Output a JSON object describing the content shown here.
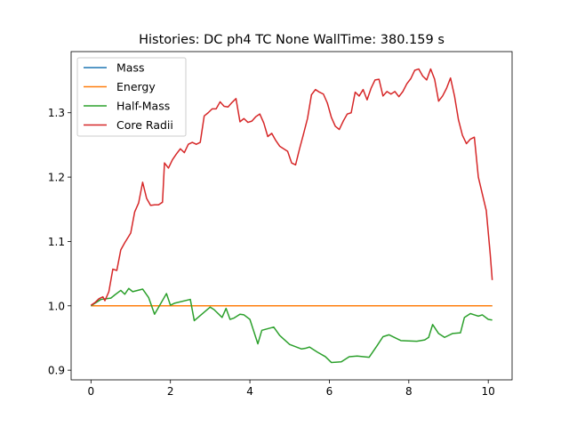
{
  "chart_data": {
    "type": "line",
    "title": "Histories: DC ph4 TC None WallTime: 380.159 s",
    "xlabel": "",
    "ylabel": "",
    "xlim": [
      -0.5,
      10.6
    ],
    "ylim": [
      0.885,
      1.395
    ],
    "xticks": [
      0,
      2,
      4,
      6,
      8,
      10
    ],
    "yticks": [
      0.9,
      1.0,
      1.1,
      1.2,
      1.3
    ],
    "ytick_labels": [
      "0.9",
      "1.0",
      "1.1",
      "1.2",
      "1.3"
    ],
    "grid": false,
    "legend_position": "upper-left",
    "series": [
      {
        "name": "Mass",
        "color": "#1f77b4",
        "x": [
          0,
          10.1
        ],
        "y": [
          1.0,
          1.0
        ]
      },
      {
        "name": "Energy",
        "color": "#ff7f0e",
        "x": [
          0,
          10.1
        ],
        "y": [
          1.0,
          1.0
        ]
      },
      {
        "name": "Half-Mass",
        "color": "#2ca02c",
        "x": [
          0,
          0.25,
          0.5,
          0.6,
          0.75,
          0.85,
          0.95,
          1.05,
          1.3,
          1.45,
          1.6,
          1.9,
          2.0,
          2.1,
          2.5,
          2.6,
          3.0,
          3.1,
          3.3,
          3.4,
          3.5,
          3.6,
          3.75,
          3.85,
          4.0,
          4.2,
          4.3,
          4.6,
          4.75,
          5.0,
          5.3,
          5.4,
          5.5,
          5.7,
          5.9,
          6.05,
          6.3,
          6.5,
          6.7,
          7.0,
          7.2,
          7.35,
          7.5,
          7.8,
          8.2,
          8.4,
          8.5,
          8.6,
          8.75,
          8.9,
          9.1,
          9.3,
          9.4,
          9.55,
          9.65,
          9.75,
          9.85,
          10.0,
          10.1
        ],
        "y": [
          1.0,
          1.01,
          1.012,
          1.017,
          1.024,
          1.018,
          1.027,
          1.022,
          1.026,
          1.013,
          0.987,
          1.019,
          1.001,
          1.004,
          1.01,
          0.977,
          0.998,
          0.994,
          0.982,
          0.996,
          0.979,
          0.981,
          0.987,
          0.986,
          0.979,
          0.941,
          0.962,
          0.967,
          0.954,
          0.94,
          0.933,
          0.934,
          0.936,
          0.928,
          0.921,
          0.912,
          0.913,
          0.921,
          0.922,
          0.92,
          0.938,
          0.952,
          0.955,
          0.946,
          0.945,
          0.947,
          0.951,
          0.971,
          0.957,
          0.951,
          0.957,
          0.958,
          0.982,
          0.988,
          0.986,
          0.984,
          0.986,
          0.979,
          0.978
        ]
      },
      {
        "name": "Core Radii",
        "color": "#d62728",
        "x": [
          0,
          0.1,
          0.2,
          0.3,
          0.35,
          0.45,
          0.55,
          0.65,
          0.75,
          0.85,
          1.0,
          1.1,
          1.2,
          1.3,
          1.4,
          1.5,
          1.6,
          1.7,
          1.8,
          1.85,
          1.95,
          2.05,
          2.15,
          2.25,
          2.35,
          2.45,
          2.55,
          2.65,
          2.75,
          2.85,
          2.95,
          3.05,
          3.15,
          3.25,
          3.35,
          3.45,
          3.55,
          3.65,
          3.75,
          3.85,
          3.95,
          4.05,
          4.15,
          4.25,
          4.35,
          4.45,
          4.55,
          4.65,
          4.75,
          4.85,
          4.95,
          5.05,
          5.15,
          5.25,
          5.35,
          5.45,
          5.55,
          5.65,
          5.75,
          5.85,
          5.95,
          6.05,
          6.15,
          6.25,
          6.35,
          6.45,
          6.55,
          6.65,
          6.75,
          6.85,
          6.95,
          7.05,
          7.15,
          7.25,
          7.35,
          7.45,
          7.55,
          7.65,
          7.75,
          7.85,
          7.95,
          8.05,
          8.15,
          8.25,
          8.35,
          8.45,
          8.55,
          8.65,
          8.75,
          8.85,
          8.95,
          9.05,
          9.15,
          9.25,
          9.35,
          9.45,
          9.55,
          9.65,
          9.75,
          9.85,
          9.95,
          10.05,
          10.1
        ],
        "y": [
          1.001,
          1.005,
          1.011,
          1.014,
          1.008,
          1.022,
          1.057,
          1.055,
          1.087,
          1.098,
          1.113,
          1.146,
          1.16,
          1.192,
          1.167,
          1.156,
          1.157,
          1.157,
          1.161,
          1.222,
          1.214,
          1.227,
          1.236,
          1.244,
          1.238,
          1.251,
          1.254,
          1.251,
          1.254,
          1.295,
          1.3,
          1.306,
          1.306,
          1.317,
          1.31,
          1.309,
          1.316,
          1.322,
          1.286,
          1.291,
          1.285,
          1.287,
          1.294,
          1.298,
          1.284,
          1.263,
          1.268,
          1.257,
          1.248,
          1.244,
          1.24,
          1.222,
          1.219,
          1.244,
          1.267,
          1.291,
          1.328,
          1.336,
          1.332,
          1.329,
          1.315,
          1.293,
          1.279,
          1.274,
          1.287,
          1.298,
          1.3,
          1.332,
          1.326,
          1.336,
          1.32,
          1.338,
          1.351,
          1.352,
          1.326,
          1.333,
          1.329,
          1.333,
          1.325,
          1.333,
          1.345,
          1.353,
          1.366,
          1.368,
          1.357,
          1.351,
          1.368,
          1.352,
          1.318,
          1.326,
          1.338,
          1.354,
          1.326,
          1.289,
          1.265,
          1.252,
          1.259,
          1.262,
          1.2,
          1.174,
          1.148,
          1.08,
          1.04
        ]
      }
    ]
  }
}
